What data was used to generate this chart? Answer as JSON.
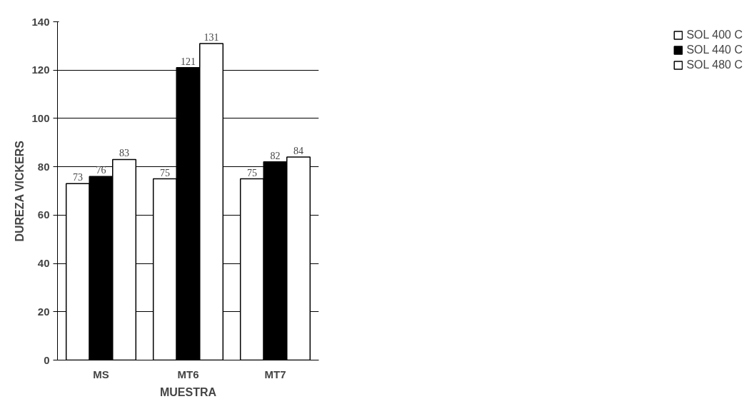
{
  "chart_data": {
    "type": "bar",
    "xlabel": "MUESTRA",
    "ylabel": "DUREZA VICKERS",
    "categories": [
      "MS",
      "MT6",
      "MT7"
    ],
    "series": [
      {
        "name": "SOL 400 C",
        "color": "#ffffff",
        "values": [
          73,
          75,
          75
        ]
      },
      {
        "name": "SOL 440 C",
        "color": "#000000",
        "values": [
          76,
          121,
          82
        ]
      },
      {
        "name": "SOL 480 C",
        "color": "#ffffff",
        "values": [
          83,
          131,
          84
        ]
      }
    ],
    "ylim": [
      0,
      140
    ],
    "yticks": [
      0,
      20,
      40,
      60,
      80,
      100,
      120,
      140
    ],
    "grid": "y",
    "legend": "right",
    "data_labels": true
  }
}
